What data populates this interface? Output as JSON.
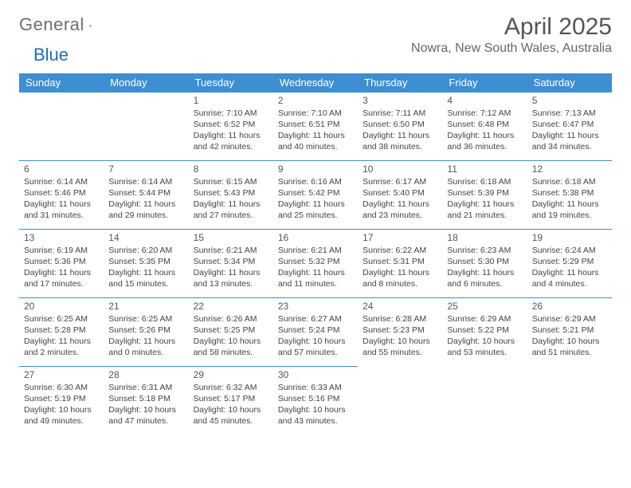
{
  "brand": {
    "part1": "General",
    "part2": "Blue"
  },
  "header": {
    "title": "April 2025",
    "location": "Nowra, New South Wales, Australia"
  },
  "colors": {
    "accent": "#3d8fd1",
    "brand_blue": "#1d6fb8",
    "text_grey": "#6e6e6e"
  },
  "calendar": {
    "day_headers": [
      "Sunday",
      "Monday",
      "Tuesday",
      "Wednesday",
      "Thursday",
      "Friday",
      "Saturday"
    ],
    "weeks": [
      [
        null,
        null,
        {
          "n": "1",
          "sr": "Sunrise: 7:10 AM",
          "ss": "Sunset: 6:52 PM",
          "dl": "Daylight: 11 hours and 42 minutes."
        },
        {
          "n": "2",
          "sr": "Sunrise: 7:10 AM",
          "ss": "Sunset: 6:51 PM",
          "dl": "Daylight: 11 hours and 40 minutes."
        },
        {
          "n": "3",
          "sr": "Sunrise: 7:11 AM",
          "ss": "Sunset: 6:50 PM",
          "dl": "Daylight: 11 hours and 38 minutes."
        },
        {
          "n": "4",
          "sr": "Sunrise: 7:12 AM",
          "ss": "Sunset: 6:48 PM",
          "dl": "Daylight: 11 hours and 36 minutes."
        },
        {
          "n": "5",
          "sr": "Sunrise: 7:13 AM",
          "ss": "Sunset: 6:47 PM",
          "dl": "Daylight: 11 hours and 34 minutes."
        }
      ],
      [
        {
          "n": "6",
          "sr": "Sunrise: 6:14 AM",
          "ss": "Sunset: 5:46 PM",
          "dl": "Daylight: 11 hours and 31 minutes."
        },
        {
          "n": "7",
          "sr": "Sunrise: 6:14 AM",
          "ss": "Sunset: 5:44 PM",
          "dl": "Daylight: 11 hours and 29 minutes."
        },
        {
          "n": "8",
          "sr": "Sunrise: 6:15 AM",
          "ss": "Sunset: 5:43 PM",
          "dl": "Daylight: 11 hours and 27 minutes."
        },
        {
          "n": "9",
          "sr": "Sunrise: 6:16 AM",
          "ss": "Sunset: 5:42 PM",
          "dl": "Daylight: 11 hours and 25 minutes."
        },
        {
          "n": "10",
          "sr": "Sunrise: 6:17 AM",
          "ss": "Sunset: 5:40 PM",
          "dl": "Daylight: 11 hours and 23 minutes."
        },
        {
          "n": "11",
          "sr": "Sunrise: 6:18 AM",
          "ss": "Sunset: 5:39 PM",
          "dl": "Daylight: 11 hours and 21 minutes."
        },
        {
          "n": "12",
          "sr": "Sunrise: 6:18 AM",
          "ss": "Sunset: 5:38 PM",
          "dl": "Daylight: 11 hours and 19 minutes."
        }
      ],
      [
        {
          "n": "13",
          "sr": "Sunrise: 6:19 AM",
          "ss": "Sunset: 5:36 PM",
          "dl": "Daylight: 11 hours and 17 minutes."
        },
        {
          "n": "14",
          "sr": "Sunrise: 6:20 AM",
          "ss": "Sunset: 5:35 PM",
          "dl": "Daylight: 11 hours and 15 minutes."
        },
        {
          "n": "15",
          "sr": "Sunrise: 6:21 AM",
          "ss": "Sunset: 5:34 PM",
          "dl": "Daylight: 11 hours and 13 minutes."
        },
        {
          "n": "16",
          "sr": "Sunrise: 6:21 AM",
          "ss": "Sunset: 5:32 PM",
          "dl": "Daylight: 11 hours and 11 minutes."
        },
        {
          "n": "17",
          "sr": "Sunrise: 6:22 AM",
          "ss": "Sunset: 5:31 PM",
          "dl": "Daylight: 11 hours and 8 minutes."
        },
        {
          "n": "18",
          "sr": "Sunrise: 6:23 AM",
          "ss": "Sunset: 5:30 PM",
          "dl": "Daylight: 11 hours and 6 minutes."
        },
        {
          "n": "19",
          "sr": "Sunrise: 6:24 AM",
          "ss": "Sunset: 5:29 PM",
          "dl": "Daylight: 11 hours and 4 minutes."
        }
      ],
      [
        {
          "n": "20",
          "sr": "Sunrise: 6:25 AM",
          "ss": "Sunset: 5:28 PM",
          "dl": "Daylight: 11 hours and 2 minutes."
        },
        {
          "n": "21",
          "sr": "Sunrise: 6:25 AM",
          "ss": "Sunset: 5:26 PM",
          "dl": "Daylight: 11 hours and 0 minutes."
        },
        {
          "n": "22",
          "sr": "Sunrise: 6:26 AM",
          "ss": "Sunset: 5:25 PM",
          "dl": "Daylight: 10 hours and 58 minutes."
        },
        {
          "n": "23",
          "sr": "Sunrise: 6:27 AM",
          "ss": "Sunset: 5:24 PM",
          "dl": "Daylight: 10 hours and 57 minutes."
        },
        {
          "n": "24",
          "sr": "Sunrise: 6:28 AM",
          "ss": "Sunset: 5:23 PM",
          "dl": "Daylight: 10 hours and 55 minutes."
        },
        {
          "n": "25",
          "sr": "Sunrise: 6:29 AM",
          "ss": "Sunset: 5:22 PM",
          "dl": "Daylight: 10 hours and 53 minutes."
        },
        {
          "n": "26",
          "sr": "Sunrise: 6:29 AM",
          "ss": "Sunset: 5:21 PM",
          "dl": "Daylight: 10 hours and 51 minutes."
        }
      ],
      [
        {
          "n": "27",
          "sr": "Sunrise: 6:30 AM",
          "ss": "Sunset: 5:19 PM",
          "dl": "Daylight: 10 hours and 49 minutes."
        },
        {
          "n": "28",
          "sr": "Sunrise: 6:31 AM",
          "ss": "Sunset: 5:18 PM",
          "dl": "Daylight: 10 hours and 47 minutes."
        },
        {
          "n": "29",
          "sr": "Sunrise: 6:32 AM",
          "ss": "Sunset: 5:17 PM",
          "dl": "Daylight: 10 hours and 45 minutes."
        },
        {
          "n": "30",
          "sr": "Sunrise: 6:33 AM",
          "ss": "Sunset: 5:16 PM",
          "dl": "Daylight: 10 hours and 43 minutes."
        },
        null,
        null,
        null
      ]
    ]
  }
}
